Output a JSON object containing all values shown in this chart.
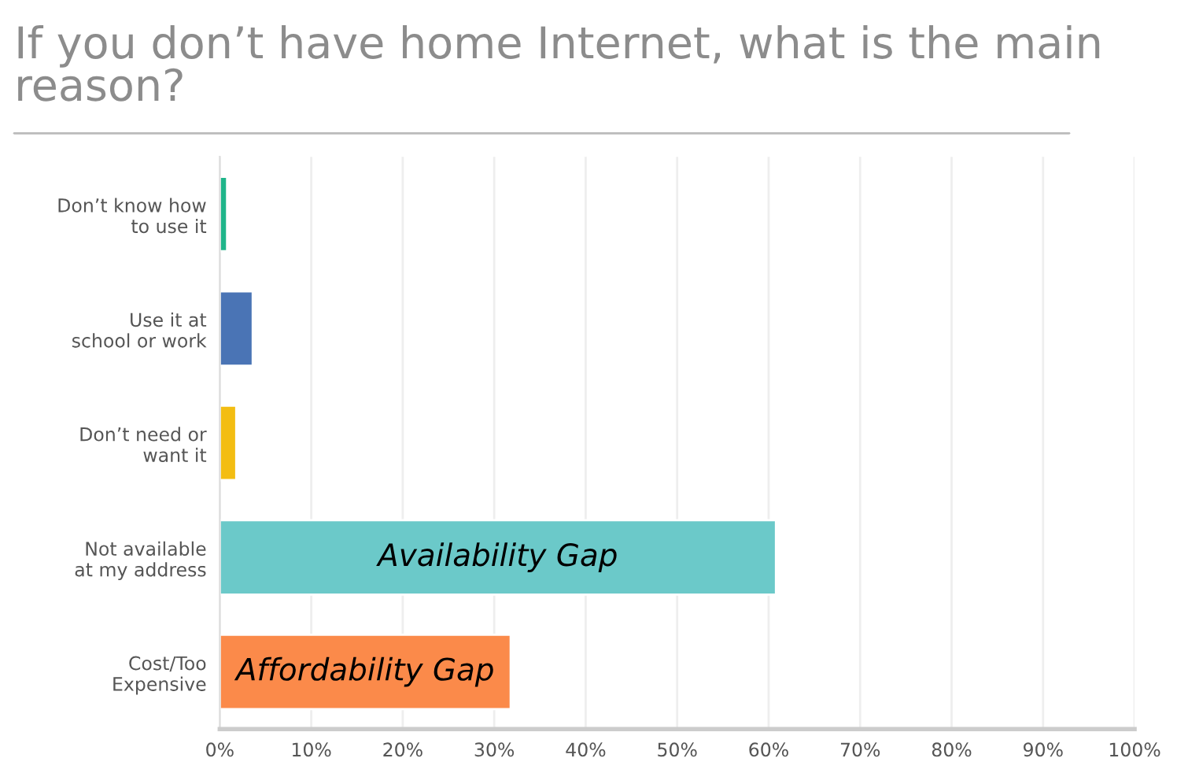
{
  "chart_data": {
    "type": "bar",
    "orientation": "horizontal",
    "title": "If you don’t have home Internet, what is the main reason?",
    "categories": [
      "Don’t know how\nto use it",
      "Use it at\nschool or work",
      "Don’t need or\nwant it",
      "Not available\nat my address",
      "Cost/Too\nExpensive"
    ],
    "values": [
      0.8,
      3.6,
      1.8,
      60.8,
      31.8
    ],
    "colors": [
      "#1fb58a",
      "#4a74b5",
      "#f3bd12",
      "#6bc9c9",
      "#fb8a4a"
    ],
    "xlim": [
      0,
      100
    ],
    "xticks": [
      {
        "value": 0,
        "label": "0%"
      },
      {
        "value": 10,
        "label": "10%"
      },
      {
        "value": 20,
        "label": "20%"
      },
      {
        "value": 30,
        "label": "30%"
      },
      {
        "value": 40,
        "label": "40%"
      },
      {
        "value": 50,
        "label": "50%"
      },
      {
        "value": 60,
        "label": "60%"
      },
      {
        "value": 70,
        "label": "70%"
      },
      {
        "value": 80,
        "label": "80%"
      },
      {
        "value": 90,
        "label": "90%"
      },
      {
        "value": 100,
        "label": "100%"
      }
    ],
    "grid": "x",
    "annotations": [
      "Availability Gap",
      "Affordability Gap"
    ]
  }
}
